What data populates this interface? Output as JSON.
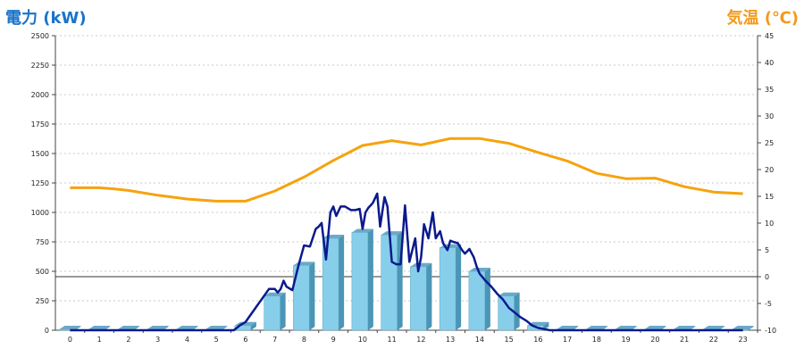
{
  "chart_data": {
    "type": "bar",
    "left_axis_title": "電力 (kW)",
    "right_axis_title": "気温 (℃)",
    "categories": [
      "0",
      "1",
      "2",
      "3",
      "4",
      "5",
      "6",
      "7",
      "8",
      "9",
      "10",
      "11",
      "12",
      "13",
      "14",
      "15",
      "16",
      "17",
      "18",
      "19",
      "20",
      "21",
      "22",
      "23"
    ],
    "left_ticks": [
      0,
      250,
      500,
      750,
      1000,
      1250,
      1500,
      1750,
      2000,
      2250,
      2500
    ],
    "right_ticks": [
      -10,
      -5,
      0,
      5,
      10,
      15,
      20,
      25,
      30,
      35,
      40,
      45
    ],
    "ylim_left": [
      0,
      2500
    ],
    "ylim_right": [
      -10,
      45
    ],
    "bars": {
      "values": [
        0,
        0,
        0,
        0,
        0,
        0,
        40,
        290,
        550,
        780,
        830,
        810,
        540,
        700,
        500,
        290,
        40,
        0,
        0,
        0,
        0,
        0,
        0,
        0
      ],
      "color": "#87ceeb"
    },
    "power_line": {
      "color": "#0a1a8c",
      "x": [
        0,
        5.6,
        5.8,
        6.0,
        6.2,
        6.4,
        6.6,
        6.8,
        7.0,
        7.1,
        7.2,
        7.3,
        7.4,
        7.6,
        7.8,
        8.0,
        8.2,
        8.4,
        8.5,
        8.6,
        8.75,
        8.9,
        9.0,
        9.1,
        9.25,
        9.4,
        9.6,
        9.75,
        9.9,
        10.0,
        10.1,
        10.2,
        10.35,
        10.5,
        10.6,
        10.75,
        10.85,
        11.0,
        11.15,
        11.3,
        11.45,
        11.6,
        11.8,
        11.9,
        12.0,
        12.1,
        12.25,
        12.4,
        12.5,
        12.65,
        12.75,
        12.9,
        13.0,
        13.1,
        13.25,
        13.4,
        13.5,
        13.65,
        13.8,
        13.9,
        14.0,
        14.2,
        14.4,
        14.6,
        14.8,
        15.0,
        15.2,
        15.4,
        15.6,
        15.8,
        16.0,
        16.2,
        16.4,
        16.6,
        17.0,
        23.0
      ],
      "y": [
        0,
        0,
        40,
        70,
        140,
        210,
        280,
        350,
        350,
        320,
        350,
        420,
        370,
        340,
        540,
        720,
        710,
        860,
        880,
        910,
        600,
        1000,
        1050,
        970,
        1050,
        1050,
        1020,
        1020,
        1030,
        860,
        1000,
        1040,
        1080,
        1160,
        880,
        1130,
        1050,
        580,
        560,
        560,
        1060,
        580,
        780,
        500,
        620,
        900,
        780,
        1000,
        780,
        840,
        740,
        680,
        760,
        750,
        740,
        680,
        650,
        690,
        620,
        540,
        480,
        420,
        370,
        310,
        260,
        190,
        150,
        110,
        80,
        40,
        20,
        10,
        0,
        0,
        0,
        0
      ]
    },
    "temperature_line": {
      "color": "#f5a30e",
      "x": [
        0,
        0.5,
        1,
        1.5,
        2,
        3,
        4,
        5,
        6,
        7,
        8,
        9,
        10,
        11,
        12,
        13,
        14,
        15,
        16,
        17,
        18,
        19,
        20,
        21,
        22,
        23
      ],
      "y": [
        16.6,
        16.6,
        16.6,
        16.4,
        16.1,
        15.2,
        14.5,
        14.1,
        14.1,
        16.0,
        18.6,
        21.7,
        24.5,
        25.4,
        24.6,
        25.8,
        25.8,
        24.9,
        23.2,
        21.6,
        19.3,
        18.3,
        18.4,
        16.8,
        15.8,
        15.5
      ]
    },
    "grid": true,
    "legend": "none"
  }
}
